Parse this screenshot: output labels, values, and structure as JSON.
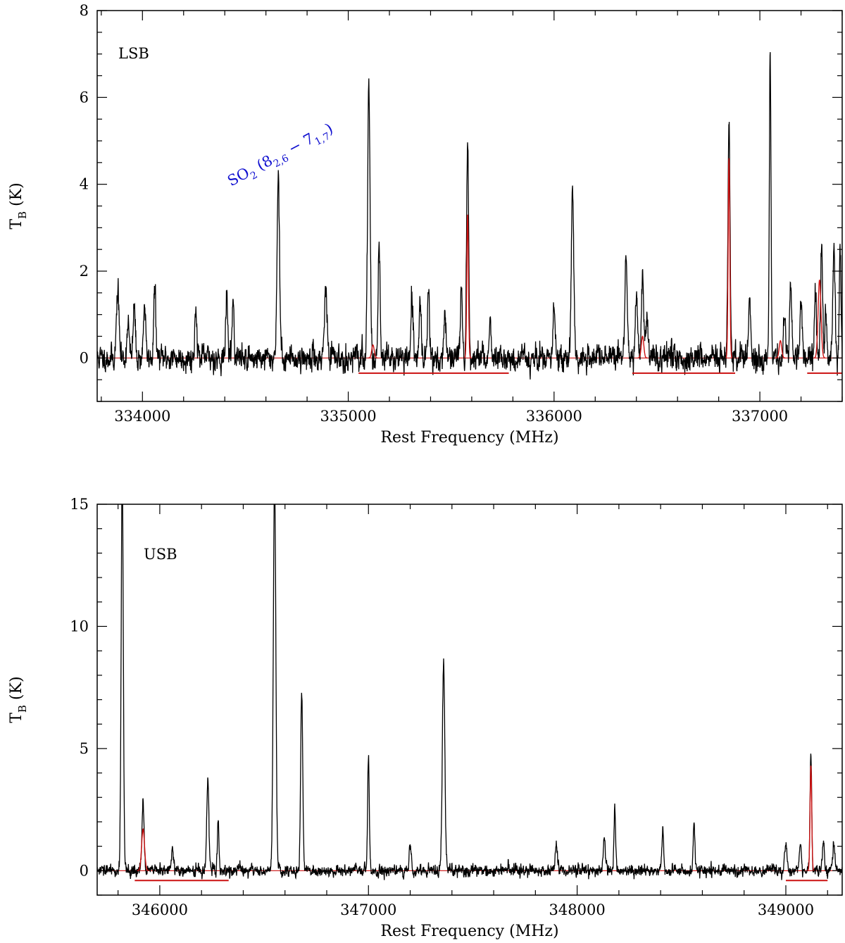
{
  "chart_data": [
    {
      "type": "line",
      "panel_label": "LSB",
      "xlabel": "Rest Frequency (MHz)",
      "ylabel_main": "T",
      "ylabel_sub": "B",
      "ylabel_unit": " (K)",
      "xlim": [
        333780,
        337400
      ],
      "ylim": [
        -1,
        8
      ],
      "xticks": [
        334000,
        335000,
        336000,
        337000
      ],
      "yticks": [
        0,
        2,
        4,
        6,
        8
      ],
      "annotation": {
        "text_main": "SO",
        "text_sub1": "2",
        "text_paren": " (8",
        "text_sub2": "2,6",
        "text_mid": " − 7",
        "text_sub3": "1,7",
        "text_close": ")",
        "color": "#1010d0",
        "anchor_x": 334430,
        "anchor_y": 3.95,
        "angle_deg": -28
      },
      "noise_rms": 0.17,
      "noise_seed": 11,
      "lines": [
        {
          "x": 333880,
          "y": 1.6,
          "w": 6
        },
        {
          "x": 333930,
          "y": 0.9,
          "w": 5
        },
        {
          "x": 333960,
          "y": 1.2,
          "w": 5
        },
        {
          "x": 334010,
          "y": 1.3,
          "w": 5
        },
        {
          "x": 334060,
          "y": 1.6,
          "w": 5
        },
        {
          "x": 334260,
          "y": 1.2,
          "w": 5
        },
        {
          "x": 334410,
          "y": 1.4,
          "w": 5
        },
        {
          "x": 334440,
          "y": 1.3,
          "w": 5
        },
        {
          "x": 334660,
          "y": 4.2,
          "w": 6
        },
        {
          "x": 334890,
          "y": 1.7,
          "w": 6
        },
        {
          "x": 335100,
          "y": 6.2,
          "w": 6
        },
        {
          "x": 335150,
          "y": 2.6,
          "w": 5
        },
        {
          "x": 335310,
          "y": 1.2,
          "w": 5
        },
        {
          "x": 335350,
          "y": 1.3,
          "w": 5
        },
        {
          "x": 335390,
          "y": 1.6,
          "w": 5
        },
        {
          "x": 335470,
          "y": 1.0,
          "w": 5
        },
        {
          "x": 335550,
          "y": 1.4,
          "w": 5
        },
        {
          "x": 335580,
          "y": 5.0,
          "w": 5
        },
        {
          "x": 335690,
          "y": 0.9,
          "w": 5
        },
        {
          "x": 336000,
          "y": 1.1,
          "w": 5
        },
        {
          "x": 336090,
          "y": 3.7,
          "w": 6
        },
        {
          "x": 336350,
          "y": 2.2,
          "w": 6
        },
        {
          "x": 336400,
          "y": 1.4,
          "w": 6
        },
        {
          "x": 336430,
          "y": 2.0,
          "w": 5
        },
        {
          "x": 336450,
          "y": 1.0,
          "w": 6
        },
        {
          "x": 336850,
          "y": 5.4,
          "w": 5
        },
        {
          "x": 336950,
          "y": 1.4,
          "w": 5
        },
        {
          "x": 337050,
          "y": 7.1,
          "w": 4
        },
        {
          "x": 337120,
          "y": 1.0,
          "w": 5
        },
        {
          "x": 337150,
          "y": 1.8,
          "w": 5
        },
        {
          "x": 337200,
          "y": 1.2,
          "w": 5
        },
        {
          "x": 337270,
          "y": 1.6,
          "w": 5
        },
        {
          "x": 337300,
          "y": 2.6,
          "w": 5
        },
        {
          "x": 337320,
          "y": 1.0,
          "w": 5
        },
        {
          "x": 337360,
          "y": 2.5,
          "w": 5
        },
        {
          "x": 337390,
          "y": 2.7,
          "w": 4
        }
      ],
      "model_lines": [
        {
          "x": 335580,
          "y": 3.3,
          "w": 4
        },
        {
          "x": 336850,
          "y": 4.6,
          "w": 4
        },
        {
          "x": 337290,
          "y": 1.8,
          "w": 7
        },
        {
          "x": 336430,
          "y": 0.5,
          "w": 6
        },
        {
          "x": 335120,
          "y": 0.3,
          "w": 6
        },
        {
          "x": 337100,
          "y": 0.4,
          "w": 6
        }
      ],
      "baseline_segments": [
        [
          335050,
          335780
        ],
        [
          336380,
          336880
        ],
        [
          337230,
          337400
        ]
      ],
      "baseline_y": -0.35,
      "series_color": "#000000",
      "model_color": "#cc1111"
    },
    {
      "type": "line",
      "panel_label": "USB",
      "xlabel": "Rest Frequency (MHz)",
      "ylabel_main": "T",
      "ylabel_sub": "B",
      "ylabel_unit": " (K)",
      "xlim": [
        345700,
        349270
      ],
      "ylim": [
        -1,
        15
      ],
      "xticks": [
        346000,
        347000,
        348000,
        349000
      ],
      "yticks": [
        0,
        5,
        10,
        15
      ],
      "noise_rms": 0.14,
      "noise_seed": 29,
      "lines": [
        {
          "x": 345820,
          "y": 16.5,
          "w": 5
        },
        {
          "x": 345920,
          "y": 2.8,
          "w": 5
        },
        {
          "x": 346060,
          "y": 0.9,
          "w": 5
        },
        {
          "x": 346230,
          "y": 3.7,
          "w": 5
        },
        {
          "x": 346280,
          "y": 2.0,
          "w": 4
        },
        {
          "x": 346550,
          "y": 16.0,
          "w": 6
        },
        {
          "x": 346680,
          "y": 7.3,
          "w": 5
        },
        {
          "x": 347000,
          "y": 4.7,
          "w": 4
        },
        {
          "x": 347200,
          "y": 1.2,
          "w": 5
        },
        {
          "x": 347360,
          "y": 8.5,
          "w": 6
        },
        {
          "x": 347900,
          "y": 1.1,
          "w": 5
        },
        {
          "x": 348130,
          "y": 1.2,
          "w": 5
        },
        {
          "x": 348180,
          "y": 2.5,
          "w": 4
        },
        {
          "x": 348410,
          "y": 1.7,
          "w": 4
        },
        {
          "x": 348560,
          "y": 2.0,
          "w": 4
        },
        {
          "x": 349000,
          "y": 1.1,
          "w": 5
        },
        {
          "x": 349070,
          "y": 1.0,
          "w": 5
        },
        {
          "x": 349120,
          "y": 4.8,
          "w": 4
        },
        {
          "x": 349180,
          "y": 1.2,
          "w": 5
        },
        {
          "x": 349230,
          "y": 1.2,
          "w": 5
        }
      ],
      "model_lines": [
        {
          "x": 345920,
          "y": 1.7,
          "w": 7
        },
        {
          "x": 349120,
          "y": 4.3,
          "w": 4
        }
      ],
      "baseline_segments": [
        [
          345880,
          346330
        ],
        [
          349000,
          349200
        ]
      ],
      "baseline_y": -0.4,
      "series_color": "#000000",
      "model_color": "#cc1111"
    }
  ]
}
